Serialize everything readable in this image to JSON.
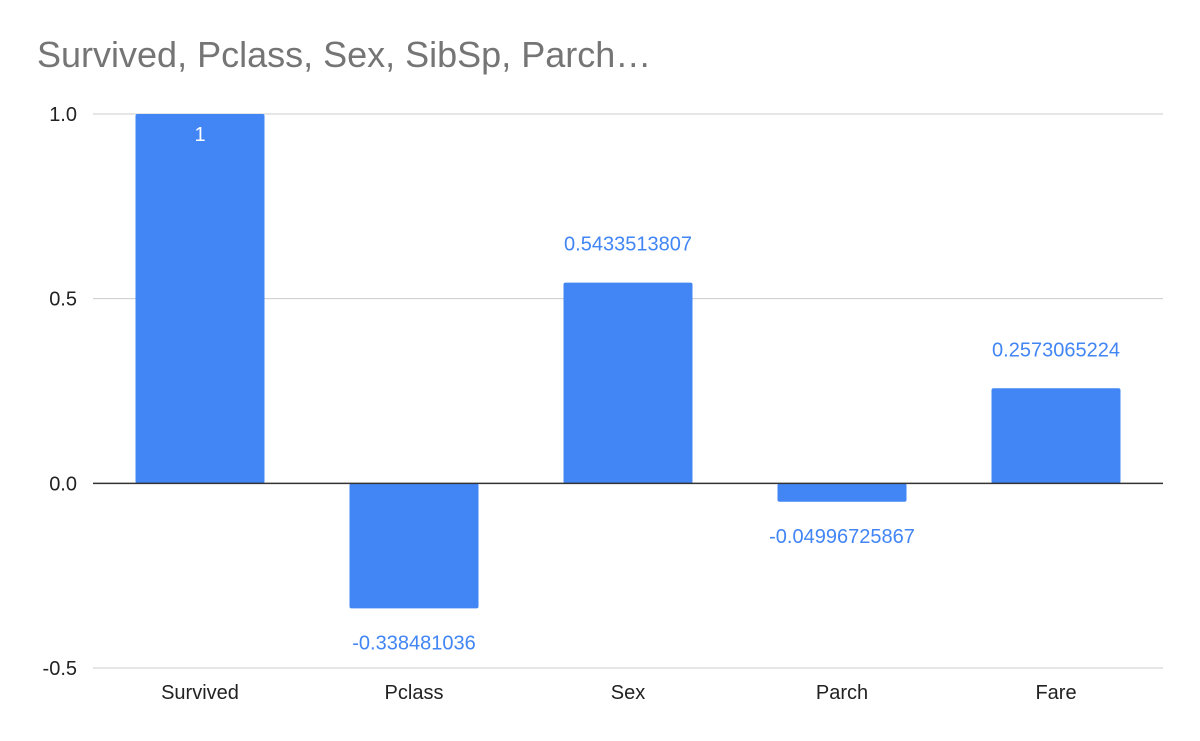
{
  "chart_data": {
    "type": "bar",
    "title": "Survived, Pclass, Sex, SibSp, Parch…",
    "xlabel": "",
    "ylabel": "",
    "categories": [
      "Survived",
      "Pclass",
      "Sex",
      "Parch",
      "Fare"
    ],
    "values": [
      1,
      -0.338481036,
      0.5433513807,
      -0.04996725867,
      0.2573065224
    ],
    "data_labels": [
      "1",
      "-0.338481036",
      "0.5433513807",
      "-0.04996725867",
      "0.2573065224"
    ],
    "ylim": [
      -0.5,
      1.0
    ],
    "yticks": [
      1.0,
      0.5,
      0.0,
      -0.5
    ],
    "ytick_labels": [
      "1.0",
      "0.5",
      "0.0",
      "-0.5"
    ],
    "grid": true,
    "legend": "none"
  },
  "colors": {
    "bar": "#4285f4",
    "label": "#4285f4",
    "label_inside": "#ffffff",
    "title": "#757575",
    "grid": "#cccccc",
    "baseline": "#333333",
    "axis_text": "#222222"
  }
}
